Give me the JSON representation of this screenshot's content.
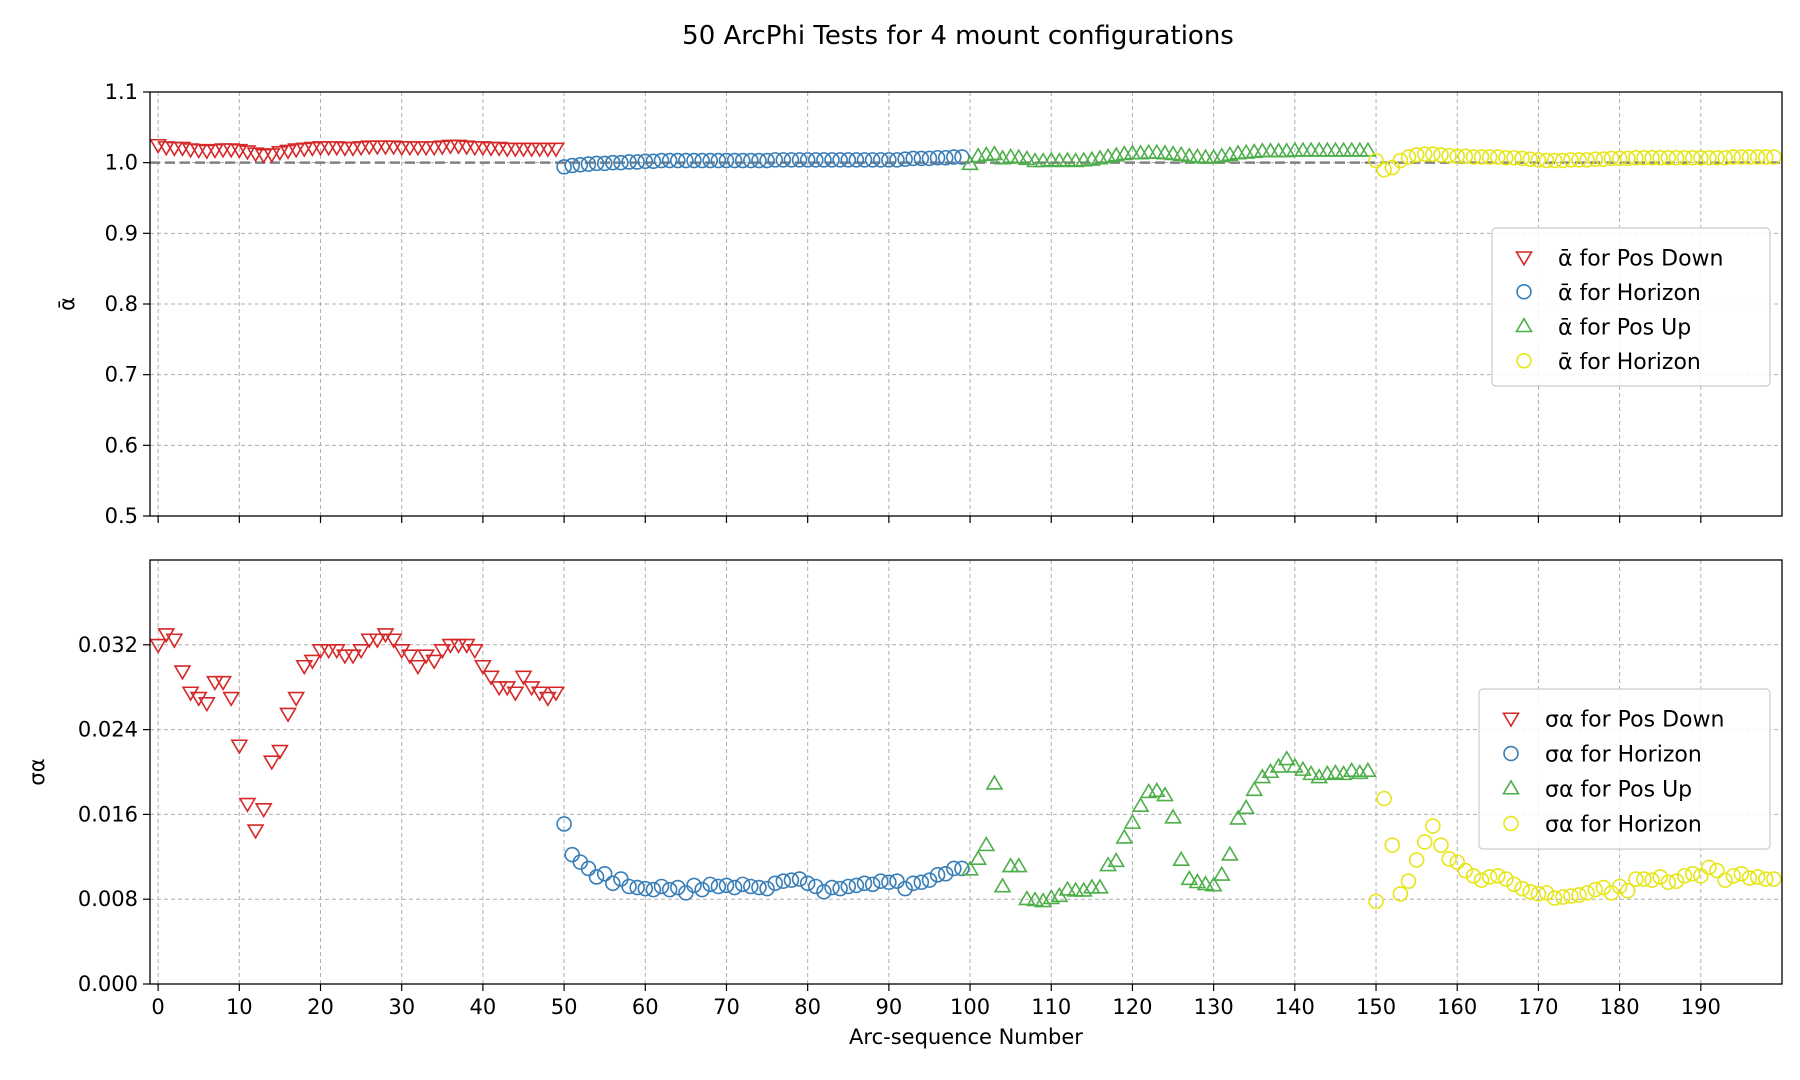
{
  "figure": {
    "title": "50 ArcPhi Tests for 4 mount configurations"
  },
  "chart_data": [
    {
      "type": "scatter",
      "panel": "top",
      "xlabel": "",
      "ylabel": "ᾱ",
      "xlim": [
        -1,
        200
      ],
      "ylim": [
        0.5,
        1.1
      ],
      "xticks": [
        0,
        10,
        20,
        30,
        40,
        50,
        60,
        70,
        80,
        90,
        100,
        110,
        120,
        130,
        140,
        150,
        160,
        170,
        180,
        190
      ],
      "yticks": [
        0.5,
        0.6,
        0.7,
        0.8,
        0.9,
        1.0,
        1.1
      ],
      "ytick_labels": [
        "0.5",
        "0.6",
        "0.7",
        "0.8",
        "0.9",
        "1.0",
        "1.1"
      ],
      "show_xtick_labels": false,
      "reference_line": {
        "y": 1.0,
        "style": "dashed",
        "color": "#808080"
      },
      "grid": true,
      "legend_position": "center-right",
      "series": [
        {
          "name": "ᾱ for Pos Down",
          "marker": "triangle-down",
          "color": "#d62728",
          "x": [
            0,
            1,
            2,
            3,
            4,
            5,
            6,
            7,
            8,
            9,
            10,
            11,
            12,
            13,
            14,
            15,
            16,
            17,
            18,
            19,
            20,
            21,
            22,
            23,
            24,
            25,
            26,
            27,
            28,
            29,
            30,
            31,
            32,
            33,
            34,
            35,
            36,
            37,
            38,
            39,
            40,
            41,
            42,
            43,
            44,
            45,
            46,
            47,
            48,
            49
          ],
          "y": [
            1.025,
            1.022,
            1.021,
            1.021,
            1.019,
            1.018,
            1.017,
            1.018,
            1.019,
            1.019,
            1.018,
            1.016,
            1.013,
            1.011,
            1.012,
            1.015,
            1.017,
            1.019,
            1.02,
            1.021,
            1.022,
            1.022,
            1.022,
            1.021,
            1.021,
            1.022,
            1.023,
            1.023,
            1.023,
            1.023,
            1.022,
            1.022,
            1.022,
            1.022,
            1.022,
            1.023,
            1.024,
            1.024,
            1.023,
            1.022,
            1.022,
            1.021,
            1.021,
            1.02,
            1.02,
            1.02,
            1.02,
            1.02,
            1.02,
            1.02
          ]
        },
        {
          "name": "ᾱ for Horizon",
          "marker": "circle",
          "color": "#377eb8",
          "x": [
            50,
            51,
            52,
            53,
            54,
            55,
            56,
            57,
            58,
            59,
            60,
            61,
            62,
            63,
            64,
            65,
            66,
            67,
            68,
            69,
            70,
            71,
            72,
            73,
            74,
            75,
            76,
            77,
            78,
            79,
            80,
            81,
            82,
            83,
            84,
            85,
            86,
            87,
            88,
            89,
            90,
            91,
            92,
            93,
            94,
            95,
            96,
            97,
            98,
            99
          ],
          "y": [
            0.994,
            0.996,
            0.997,
            0.998,
            0.999,
            0.999,
            1.0,
            1.0,
            1.001,
            1.001,
            1.002,
            1.002,
            1.003,
            1.003,
            1.003,
            1.003,
            1.003,
            1.003,
            1.003,
            1.003,
            1.003,
            1.003,
            1.003,
            1.003,
            1.003,
            1.003,
            1.004,
            1.004,
            1.004,
            1.004,
            1.004,
            1.004,
            1.004,
            1.004,
            1.004,
            1.004,
            1.004,
            1.004,
            1.004,
            1.004,
            1.004,
            1.004,
            1.005,
            1.006,
            1.006,
            1.006,
            1.007,
            1.007,
            1.008,
            1.008
          ]
        },
        {
          "name": "ᾱ for Pos Up",
          "marker": "triangle-up",
          "color": "#4daf4a",
          "x": [
            100,
            101,
            102,
            103,
            104,
            105,
            106,
            107,
            108,
            109,
            110,
            111,
            112,
            113,
            114,
            115,
            116,
            117,
            118,
            119,
            120,
            121,
            122,
            123,
            124,
            125,
            126,
            127,
            128,
            129,
            130,
            131,
            132,
            133,
            134,
            135,
            136,
            137,
            138,
            139,
            140,
            141,
            142,
            143,
            144,
            145,
            146,
            147,
            148,
            149
          ],
          "y": [
            0.998,
            1.009,
            1.011,
            1.012,
            1.006,
            1.008,
            1.007,
            1.005,
            1.002,
            1.002,
            1.003,
            1.002,
            1.003,
            1.002,
            1.003,
            1.004,
            1.006,
            1.008,
            1.01,
            1.012,
            1.013,
            1.013,
            1.014,
            1.014,
            1.013,
            1.012,
            1.011,
            1.009,
            1.008,
            1.007,
            1.007,
            1.009,
            1.011,
            1.013,
            1.014,
            1.015,
            1.016,
            1.016,
            1.016,
            1.016,
            1.017,
            1.017,
            1.017,
            1.017,
            1.017,
            1.017,
            1.017,
            1.017,
            1.017,
            1.017
          ]
        },
        {
          "name": "ᾱ for Horizon",
          "marker": "circle",
          "color": "#e6e619",
          "x": [
            150,
            151,
            152,
            153,
            154,
            155,
            156,
            157,
            158,
            159,
            160,
            161,
            162,
            163,
            164,
            165,
            166,
            167,
            168,
            169,
            170,
            171,
            172,
            173,
            174,
            175,
            176,
            177,
            178,
            179,
            180,
            181,
            182,
            183,
            184,
            185,
            186,
            187,
            188,
            189,
            190,
            191,
            192,
            193,
            194,
            195,
            196,
            197,
            198,
            199
          ],
          "y": [
            1.003,
            0.99,
            0.993,
            1.003,
            1.008,
            1.011,
            1.012,
            1.012,
            1.011,
            1.01,
            1.009,
            1.009,
            1.008,
            1.008,
            1.008,
            1.008,
            1.007,
            1.007,
            1.006,
            1.005,
            1.004,
            1.003,
            1.003,
            1.003,
            1.004,
            1.004,
            1.004,
            1.005,
            1.005,
            1.006,
            1.006,
            1.006,
            1.007,
            1.007,
            1.007,
            1.007,
            1.007,
            1.007,
            1.007,
            1.007,
            1.007,
            1.007,
            1.007,
            1.007,
            1.008,
            1.008,
            1.008,
            1.008,
            1.008,
            1.008
          ]
        }
      ]
    },
    {
      "type": "scatter",
      "panel": "bottom",
      "xlabel": "Arc-sequence Number",
      "ylabel": "σα",
      "xlim": [
        -1,
        200
      ],
      "ylim": [
        0.0,
        0.04
      ],
      "xticks": [
        0,
        10,
        20,
        30,
        40,
        50,
        60,
        70,
        80,
        90,
        100,
        110,
        120,
        130,
        140,
        150,
        160,
        170,
        180,
        190
      ],
      "xtick_labels": [
        "0",
        "10",
        "20",
        "30",
        "40",
        "50",
        "60",
        "70",
        "80",
        "90",
        "100",
        "110",
        "120",
        "130",
        "140",
        "150",
        "160",
        "170",
        "180",
        "190"
      ],
      "yticks": [
        0.0,
        0.008,
        0.016,
        0.024,
        0.032
      ],
      "ytick_labels": [
        "0.000",
        "0.008",
        "0.016",
        "0.024",
        "0.032"
      ],
      "show_xtick_labels": true,
      "grid": true,
      "legend_position": "center-right",
      "series": [
        {
          "name": "σα for Pos Down",
          "marker": "triangle-down",
          "color": "#d62728",
          "x": [
            0,
            1,
            2,
            3,
            4,
            5,
            6,
            7,
            8,
            9,
            10,
            11,
            12,
            13,
            14,
            15,
            16,
            17,
            18,
            19,
            20,
            21,
            22,
            23,
            24,
            25,
            26,
            27,
            28,
            29,
            30,
            31,
            32,
            33,
            34,
            35,
            36,
            37,
            38,
            39,
            40,
            41,
            42,
            43,
            44,
            45,
            46,
            47,
            48,
            49
          ],
          "y": [
            0.032,
            0.033,
            0.0325,
            0.0295,
            0.0275,
            0.027,
            0.0265,
            0.0285,
            0.0285,
            0.027,
            0.0225,
            0.017,
            0.0145,
            0.0165,
            0.021,
            0.022,
            0.0255,
            0.027,
            0.03,
            0.0305,
            0.0315,
            0.0315,
            0.0315,
            0.031,
            0.031,
            0.0315,
            0.0325,
            0.0325,
            0.033,
            0.0325,
            0.0315,
            0.031,
            0.03,
            0.031,
            0.0305,
            0.0315,
            0.032,
            0.032,
            0.032,
            0.0315,
            0.03,
            0.029,
            0.028,
            0.028,
            0.0275,
            0.029,
            0.028,
            0.0275,
            0.027,
            0.0275
          ]
        },
        {
          "name": "σα for Horizon",
          "marker": "circle",
          "color": "#377eb8",
          "x": [
            50,
            51,
            52,
            53,
            54,
            55,
            56,
            57,
            58,
            59,
            60,
            61,
            62,
            63,
            64,
            65,
            66,
            67,
            68,
            69,
            70,
            71,
            72,
            73,
            74,
            75,
            76,
            77,
            78,
            79,
            80,
            81,
            82,
            83,
            84,
            85,
            86,
            87,
            88,
            89,
            90,
            91,
            92,
            93,
            94,
            95,
            96,
            97,
            98,
            99
          ],
          "y": [
            0.0151,
            0.0122,
            0.0115,
            0.0109,
            0.0101,
            0.0104,
            0.0095,
            0.0099,
            0.0092,
            0.0091,
            0.009,
            0.0089,
            0.0092,
            0.0089,
            0.0091,
            0.0086,
            0.0093,
            0.0089,
            0.0094,
            0.0092,
            0.0093,
            0.0091,
            0.0094,
            0.0092,
            0.0091,
            0.009,
            0.0095,
            0.0097,
            0.0098,
            0.0099,
            0.0095,
            0.0092,
            0.0087,
            0.0091,
            0.009,
            0.0092,
            0.0093,
            0.0095,
            0.0094,
            0.0097,
            0.0096,
            0.0097,
            0.009,
            0.0095,
            0.0096,
            0.0098,
            0.0103,
            0.0104,
            0.0109,
            0.0109
          ]
        },
        {
          "name": "σα for Pos Up",
          "marker": "triangle-up",
          "color": "#4daf4a",
          "x": [
            100,
            101,
            102,
            103,
            104,
            105,
            106,
            107,
            108,
            109,
            110,
            111,
            112,
            113,
            114,
            115,
            116,
            117,
            118,
            119,
            120,
            121,
            122,
            123,
            124,
            125,
            126,
            127,
            128,
            129,
            130,
            131,
            132,
            133,
            134,
            135,
            136,
            137,
            138,
            139,
            140,
            141,
            142,
            143,
            144,
            145,
            146,
            147,
            148,
            149
          ],
          "y": [
            0.0108,
            0.0118,
            0.0131,
            0.0189,
            0.0092,
            0.0111,
            0.0111,
            0.008,
            0.0079,
            0.0078,
            0.0081,
            0.0083,
            0.0089,
            0.0088,
            0.0088,
            0.0091,
            0.0091,
            0.0112,
            0.0116,
            0.0138,
            0.0152,
            0.0168,
            0.0181,
            0.0182,
            0.0178,
            0.0157,
            0.0117,
            0.0099,
            0.0096,
            0.0094,
            0.0093,
            0.0103,
            0.0122,
            0.0156,
            0.0166,
            0.0183,
            0.0195,
            0.02,
            0.0205,
            0.0212,
            0.0205,
            0.0202,
            0.0198,
            0.0195,
            0.0198,
            0.0199,
            0.0198,
            0.0201,
            0.0199,
            0.0201
          ]
        },
        {
          "name": "σα for Horizon",
          "marker": "circle",
          "color": "#e6e619",
          "x": [
            150,
            151,
            152,
            153,
            154,
            155,
            156,
            157,
            158,
            159,
            160,
            161,
            162,
            163,
            164,
            165,
            166,
            167,
            168,
            169,
            170,
            171,
            172,
            173,
            174,
            175,
            176,
            177,
            178,
            179,
            180,
            181,
            182,
            183,
            184,
            185,
            186,
            187,
            188,
            189,
            190,
            191,
            192,
            193,
            194,
            195,
            196,
            197,
            198,
            199
          ],
          "y": [
            0.0078,
            0.0175,
            0.0131,
            0.0085,
            0.0097,
            0.0117,
            0.0134,
            0.0149,
            0.0131,
            0.0118,
            0.0115,
            0.0107,
            0.0102,
            0.0098,
            0.0101,
            0.0102,
            0.0099,
            0.0094,
            0.009,
            0.0087,
            0.0085,
            0.0086,
            0.0081,
            0.0082,
            0.0083,
            0.0084,
            0.0086,
            0.0089,
            0.0091,
            0.0086,
            0.0092,
            0.0088,
            0.0099,
            0.0099,
            0.0098,
            0.0101,
            0.0096,
            0.0097,
            0.0102,
            0.0104,
            0.0102,
            0.011,
            0.0107,
            0.0098,
            0.0102,
            0.0104,
            0.01,
            0.0101,
            0.0099,
            0.0099
          ]
        }
      ]
    }
  ]
}
